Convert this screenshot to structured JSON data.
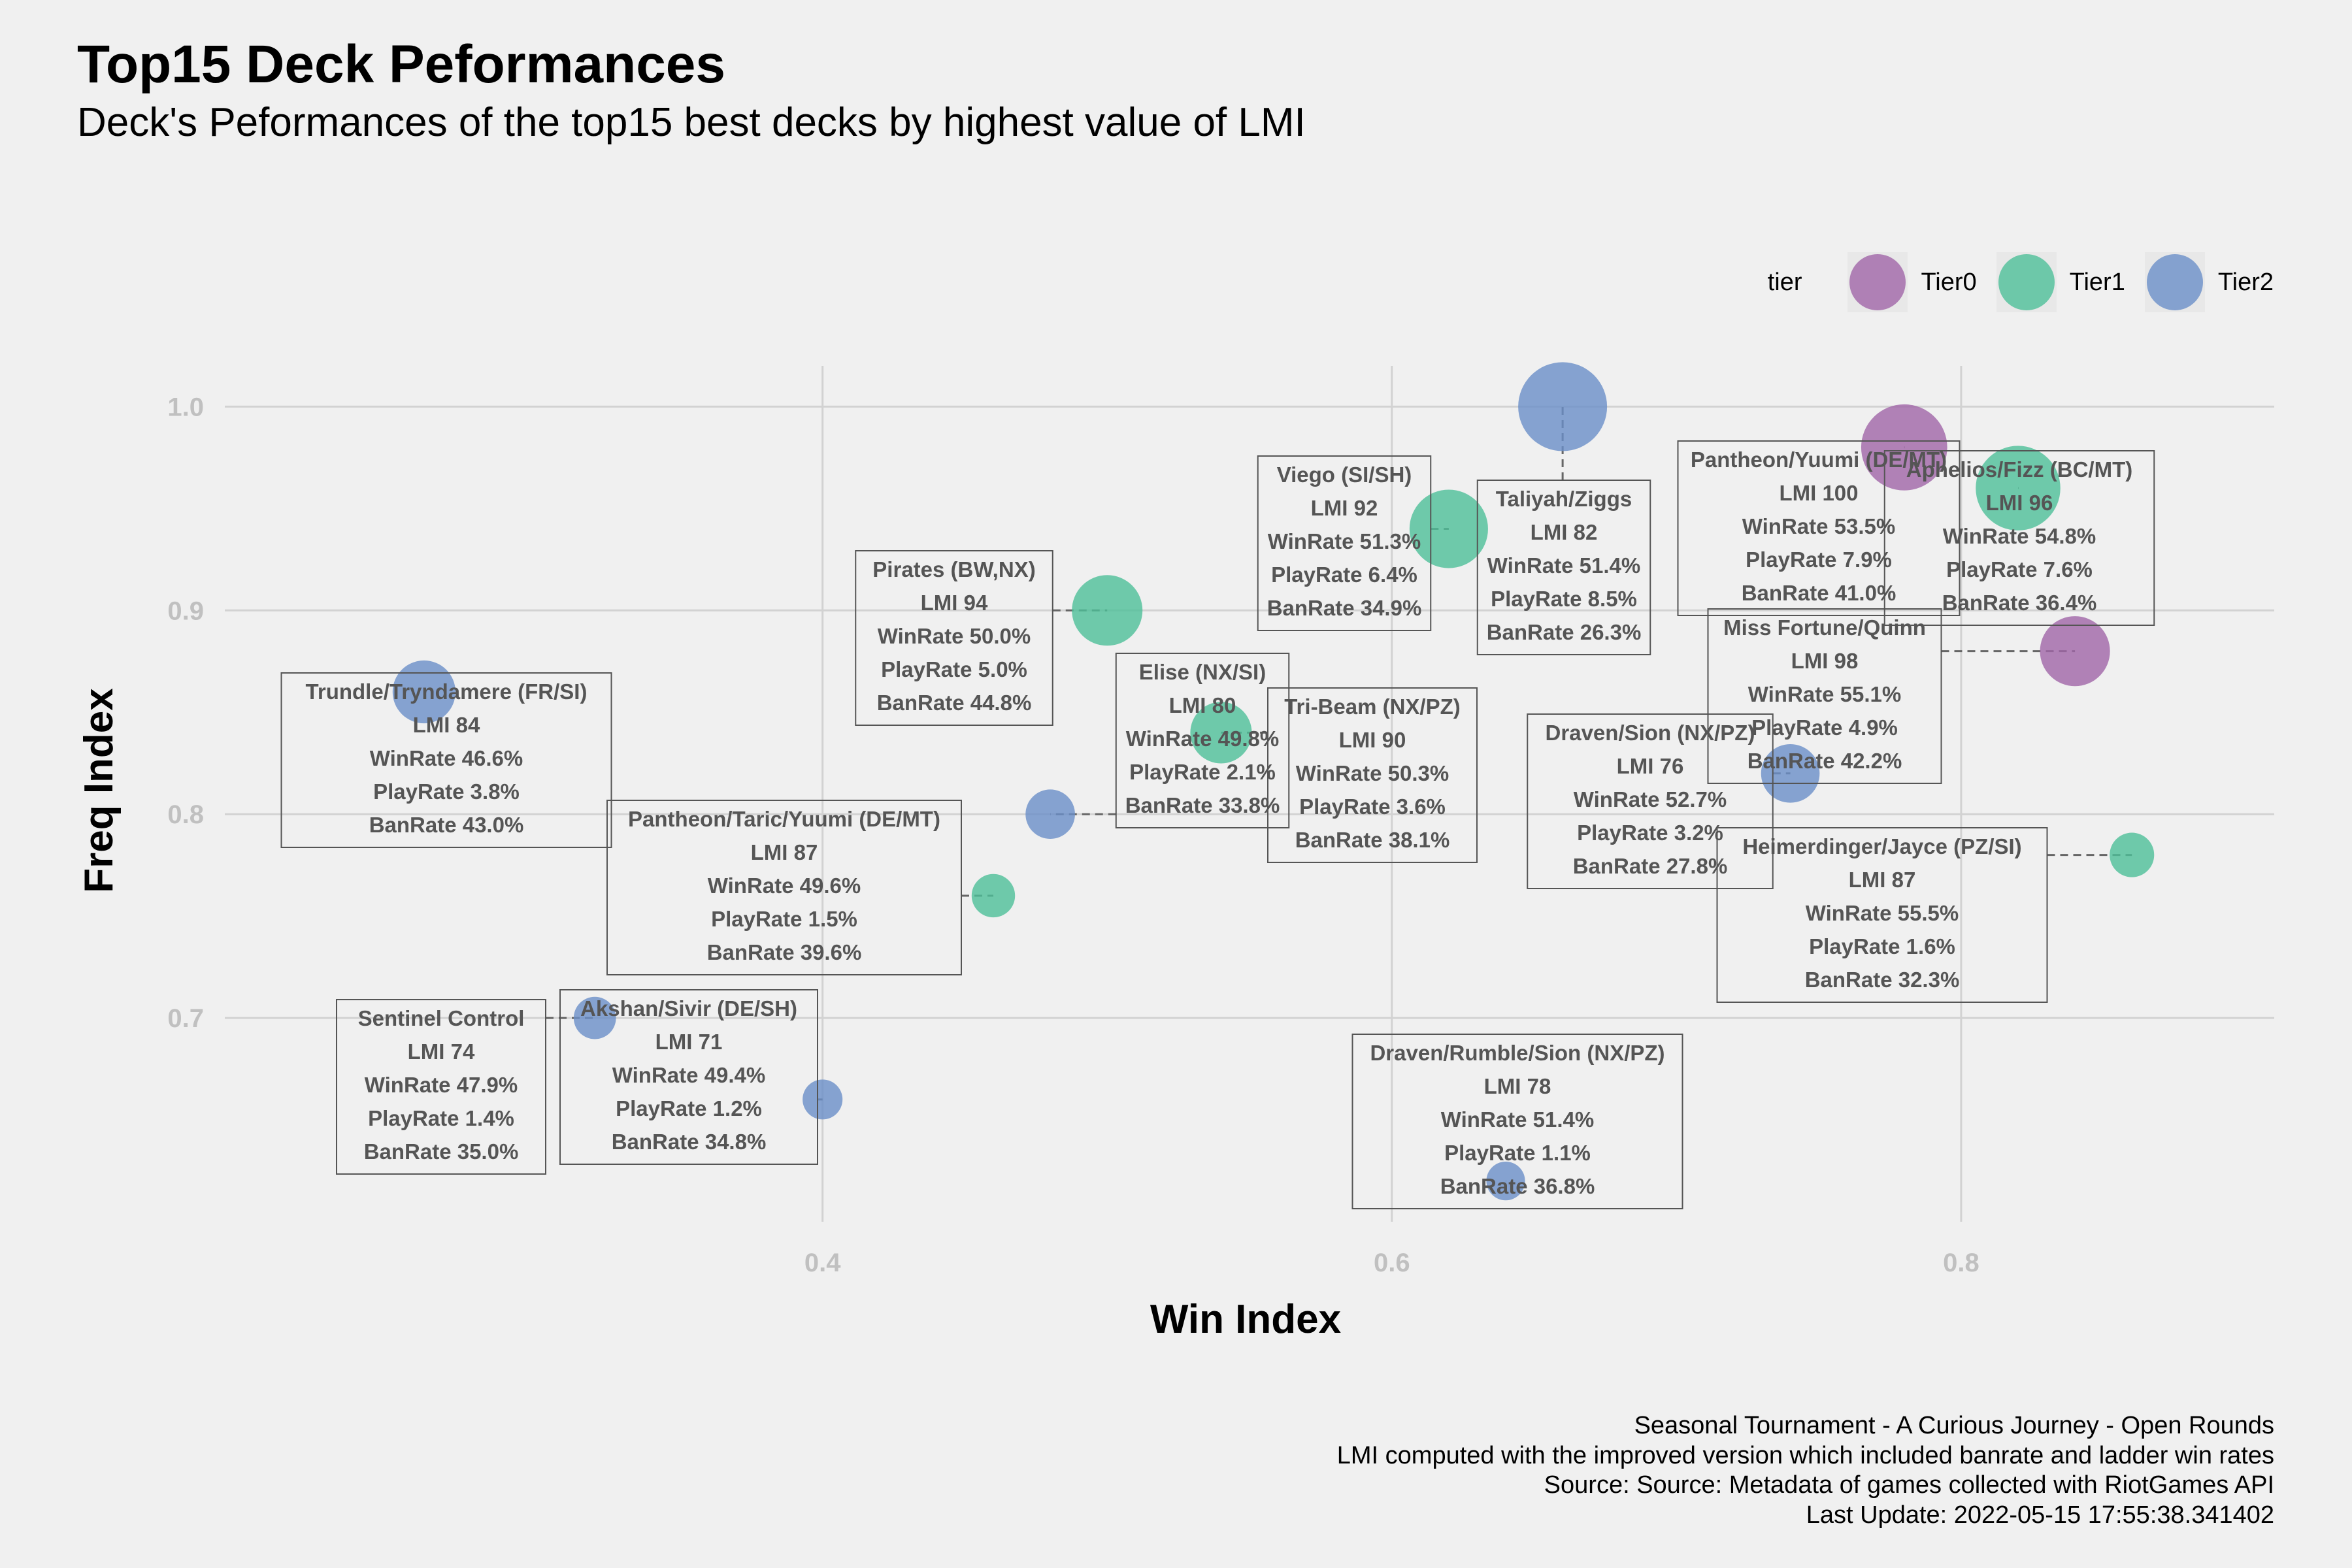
{
  "title": "Top15 Deck Peformances",
  "subtitle": "Deck's Peformances of the top15 best decks by highest value of LMI",
  "legend": {
    "title": "tier",
    "items": [
      {
        "label": "Tier0",
        "color": "#a065a8"
      },
      {
        "label": "Tier1",
        "color": "#4dbf98"
      },
      {
        "label": "Tier2",
        "color": "#6a8fc8"
      }
    ]
  },
  "caption": [
    "Seasonal Tournament - A Curious Journey - Open Rounds",
    "LMI computed with the improved version which included banrate and ladder win rates",
    "Source: Source: Metadata of games collected with RiotGames API",
    "Last Update: 2022-05-15 17:55:38.341402"
  ],
  "chart_data": {
    "type": "scatter",
    "title": "Top15 Deck Peformances",
    "subtitle": "Deck's Peformances of the top15 best decks by highest value of LMI",
    "xlabel": "Win Index",
    "ylabel": "Freq Index",
    "xlim": [
      0.19,
      0.91
    ],
    "ylim": [
      0.6,
      1.02
    ],
    "xticks": [
      0.4,
      0.6,
      0.8
    ],
    "xtick_labels": [
      "0.4",
      "0.6",
      "0.8"
    ],
    "yticks": [
      0.7,
      0.8,
      0.9,
      1.0
    ],
    "ytick_labels": [
      "0.7",
      "0.8",
      "0.9",
      "1.0"
    ],
    "grid": true,
    "legend_position": "top-right",
    "size_encoding": "PlayRate",
    "points": [
      {
        "deck": "Pantheon/Yuumi (DE/MT)",
        "tier": "Tier0",
        "x": 0.78,
        "y": 0.98,
        "lmi": "LMI 100",
        "winrate": "WinRate 53.5%",
        "playrate": "PlayRate 7.9%",
        "banrate": "BanRate 41.0%",
        "playrate_value": 7.9
      },
      {
        "deck": "Miss Fortune/Quinn",
        "tier": "Tier0",
        "x": 0.84,
        "y": 0.88,
        "lmi": "LMI 98",
        "winrate": "WinRate 55.1%",
        "playrate": "PlayRate 4.9%",
        "banrate": "BanRate 42.2%",
        "playrate_value": 4.9
      },
      {
        "deck": "Aphelios/Fizz (BC/MT)",
        "tier": "Tier1",
        "x": 0.82,
        "y": 0.96,
        "lmi": "LMI 96",
        "winrate": "WinRate 54.8%",
        "playrate": "PlayRate 7.6%",
        "banrate": "BanRate 36.4%",
        "playrate_value": 7.6
      },
      {
        "deck": "Pirates (BW,NX)",
        "tier": "Tier1",
        "x": 0.5,
        "y": 0.9,
        "lmi": "LMI 94",
        "winrate": "WinRate 50.0%",
        "playrate": "PlayRate 5.0%",
        "banrate": "BanRate 44.8%",
        "playrate_value": 5.0
      },
      {
        "deck": "Viego (SI/SH)",
        "tier": "Tier1",
        "x": 0.62,
        "y": 0.94,
        "lmi": "LMI 92",
        "winrate": "WinRate 51.3%",
        "playrate": "PlayRate 6.4%",
        "banrate": "BanRate 34.9%",
        "playrate_value": 6.4
      },
      {
        "deck": "Tri-Beam (NX/PZ)",
        "tier": "Tier1",
        "x": 0.54,
        "y": 0.84,
        "lmi": "LMI 90",
        "winrate": "WinRate 50.3%",
        "playrate": "PlayRate 3.6%",
        "banrate": "BanRate 38.1%",
        "playrate_value": 3.6
      },
      {
        "deck": "Pantheon/Taric/Yuumi (DE/MT)",
        "tier": "Tier1",
        "x": 0.46,
        "y": 0.76,
        "lmi": "LMI 87",
        "winrate": "WinRate 49.6%",
        "playrate": "PlayRate 1.5%",
        "banrate": "BanRate 39.6%",
        "playrate_value": 1.5
      },
      {
        "deck": "Heimerdinger/Jayce (PZ/SI)",
        "tier": "Tier1",
        "x": 0.86,
        "y": 0.78,
        "lmi": "LMI 87",
        "winrate": "WinRate 55.5%",
        "playrate": "PlayRate 1.6%",
        "banrate": "BanRate 32.3%",
        "playrate_value": 1.6
      },
      {
        "deck": "Trundle/Tryndamere (FR/SI)",
        "tier": "Tier2",
        "x": 0.26,
        "y": 0.86,
        "lmi": "LMI 84",
        "winrate": "WinRate 46.6%",
        "playrate": "PlayRate 3.8%",
        "banrate": "BanRate 43.0%",
        "playrate_value": 3.8
      },
      {
        "deck": "Taliyah/Ziggs",
        "tier": "Tier2",
        "x": 0.66,
        "y": 1.0,
        "lmi": "LMI 82",
        "winrate": "WinRate 51.4%",
        "playrate": "PlayRate 8.5%",
        "banrate": "BanRate 26.3%",
        "playrate_value": 8.5
      },
      {
        "deck": "Elise (NX/SI)",
        "tier": "Tier2",
        "x": 0.48,
        "y": 0.8,
        "lmi": "LMI 80",
        "winrate": "WinRate 49.8%",
        "playrate": "PlayRate 2.1%",
        "banrate": "BanRate 33.8%",
        "playrate_value": 2.1
      },
      {
        "deck": "Draven/Rumble/Sion (NX/PZ)",
        "tier": "Tier2",
        "x": 0.64,
        "y": 0.62,
        "lmi": "LMI 78",
        "winrate": "WinRate 51.4%",
        "playrate": "PlayRate 1.1%",
        "banrate": "BanRate 36.8%",
        "playrate_value": 1.1
      },
      {
        "deck": "Draven/Sion (NX/PZ)",
        "tier": "Tier2",
        "x": 0.74,
        "y": 0.82,
        "lmi": "LMI 76",
        "winrate": "WinRate 52.7%",
        "playrate": "PlayRate 3.2%",
        "banrate": "BanRate 27.8%",
        "playrate_value": 3.2
      },
      {
        "deck": "Sentinel Control",
        "tier": "Tier2",
        "x": 0.32,
        "y": 0.7,
        "lmi": "LMI 74",
        "winrate": "WinRate 47.9%",
        "playrate": "PlayRate 1.4%",
        "banrate": "BanRate 35.0%",
        "playrate_value": 1.4
      },
      {
        "deck": "Akshan/Sivir (DE/SH)",
        "tier": "Tier2",
        "x": 0.4,
        "y": 0.66,
        "lmi": "LMI 71",
        "winrate": "WinRate 49.4%",
        "playrate": "PlayRate 1.2%",
        "banrate": "BanRate 34.8%",
        "playrate_value": 1.2
      }
    ]
  }
}
